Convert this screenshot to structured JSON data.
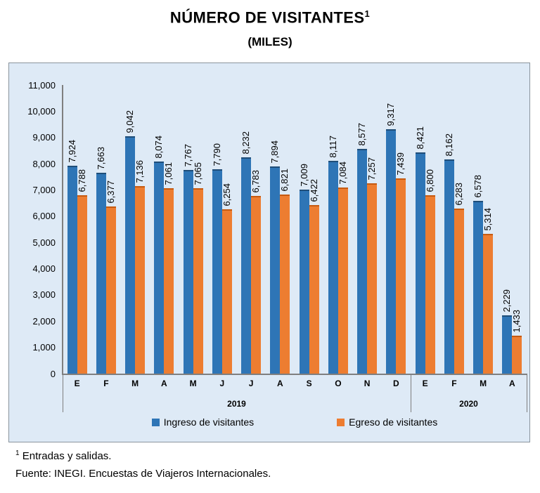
{
  "title": {
    "text": "NÚMERO DE VISITANTES",
    "sup": "1"
  },
  "subtitle": "(MILES)",
  "chart_data": {
    "type": "bar",
    "categories": [
      "E",
      "F",
      "M",
      "A",
      "M",
      "J",
      "J",
      "A",
      "S",
      "O",
      "N",
      "D",
      "E",
      "F",
      "M",
      "A"
    ],
    "year_groups": [
      {
        "label": "2019",
        "start": 0,
        "count": 12
      },
      {
        "label": "2020",
        "start": 12,
        "count": 4
      }
    ],
    "series": [
      {
        "name": "Ingreso de visitantes",
        "key": "ingreso",
        "color": "#2E75B6",
        "edge_color": "#1F4E79",
        "values": [
          7924,
          7663,
          9042,
          8074,
          7767,
          7790,
          8232,
          7894,
          7009,
          8117,
          8577,
          9317,
          8421,
          8162,
          6578,
          2229
        ]
      },
      {
        "name": "Egreso de visitantes",
        "key": "egreso",
        "color": "#ED7D31",
        "edge_color": "#C55A11",
        "values": [
          6788,
          6377,
          7136,
          7061,
          7065,
          6254,
          6783,
          6821,
          6422,
          7084,
          7257,
          7439,
          6800,
          6283,
          5314,
          1433
        ]
      }
    ],
    "ylim": [
      0,
      11000
    ],
    "ytick_step": 1000,
    "grid": false,
    "legend_position": "bottom",
    "data_labels": true,
    "data_label_rotation": "vertical",
    "number_format": "thousands-comma"
  },
  "footnote": {
    "sup": "1",
    "text": "Entradas y salidas."
  },
  "source": "Fuente: INEGI. Encuestas de Viajeros Internacionales.",
  "colors": {
    "panel_bg": "#DEEAF6",
    "panel_border": "#8A949D",
    "axis": "#7F7F7F"
  }
}
